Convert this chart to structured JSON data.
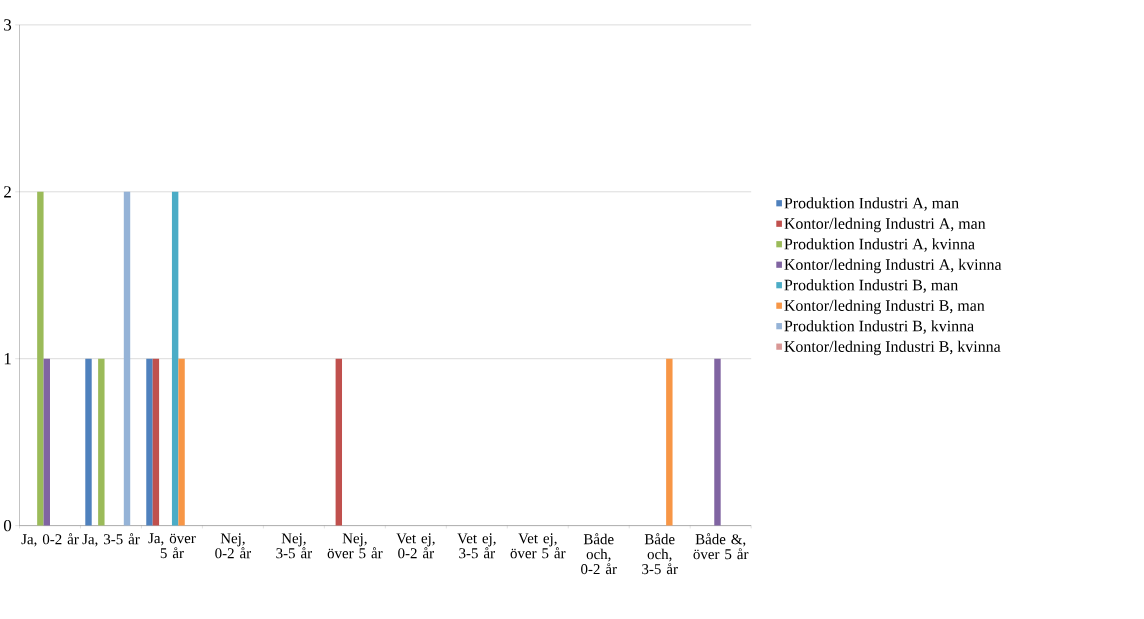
{
  "chart_data": {
    "type": "bar",
    "categories": [
      "Ja, 0-2 år",
      "Ja, 3-5 år",
      "Ja, över 5 år",
      "Nej, 0-2 år",
      "Nej, 3-5 år",
      "Nej, över 5 år",
      "Vet ej, 0-2 år",
      "Vet ej, 3-5 år",
      "Vet ej, över 5 år",
      "Både och, 0-2 år",
      "Både och, 3-5 år",
      "Både &, över 5 år"
    ],
    "series": [
      {
        "name": "Produktion Industri A, man",
        "color": "#4f81bd",
        "values": [
          null,
          1,
          1,
          null,
          null,
          null,
          null,
          null,
          null,
          null,
          null,
          null
        ]
      },
      {
        "name": "Kontor/ledning Industri A, man",
        "color": "#c0504d",
        "values": [
          null,
          null,
          1,
          null,
          null,
          1,
          null,
          null,
          null,
          null,
          null,
          null
        ]
      },
      {
        "name": "Produktion Industri A, kvinna",
        "color": "#9bbb59",
        "values": [
          2,
          1,
          null,
          null,
          null,
          null,
          null,
          null,
          null,
          null,
          null,
          null
        ]
      },
      {
        "name": "Kontor/ledning Industri A, kvinna",
        "color": "#8064a2",
        "values": [
          1,
          null,
          null,
          null,
          null,
          null,
          null,
          null,
          null,
          null,
          null,
          1
        ]
      },
      {
        "name": "Produktion Industri B, man",
        "color": "#4bacc6",
        "values": [
          null,
          null,
          2,
          null,
          null,
          null,
          null,
          null,
          null,
          null,
          null,
          null
        ]
      },
      {
        "name": "Kontor/ledning Industri B, man",
        "color": "#f79646",
        "values": [
          null,
          null,
          1,
          null,
          null,
          null,
          null,
          null,
          null,
          null,
          1,
          null
        ]
      },
      {
        "name": "Produktion Industri B, kvinna",
        "color": "#95b3d7",
        "values": [
          null,
          2,
          null,
          null,
          null,
          null,
          null,
          null,
          null,
          null,
          null,
          null
        ]
      },
      {
        "name": "Kontor/ledning Industri B, kvinna",
        "color": "#d99795",
        "values": [
          null,
          null,
          null,
          null,
          null,
          null,
          null,
          null,
          null,
          null,
          null,
          null
        ]
      }
    ],
    "ylim": [
      0,
      3
    ],
    "yticks": [
      0,
      1,
      2,
      3
    ],
    "grid": "y",
    "legend": "right"
  }
}
